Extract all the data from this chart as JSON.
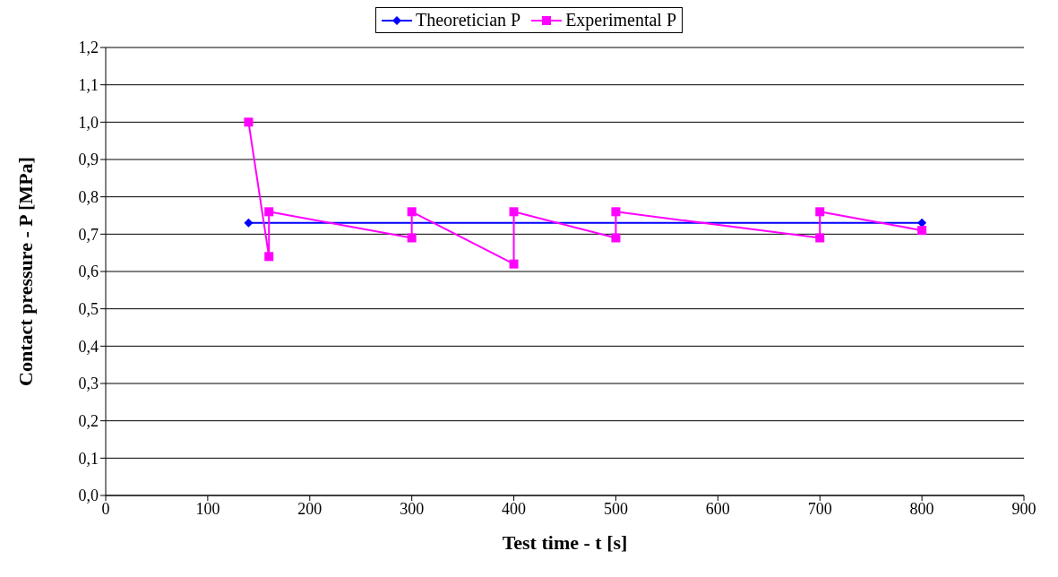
{
  "chart_data": {
    "type": "line",
    "xlabel": "Test time - t [s]",
    "ylabel": "Contact pressure - P [MPa]",
    "xlim": [
      0,
      900
    ],
    "xticks": [
      0,
      100,
      200,
      300,
      400,
      500,
      600,
      700,
      800,
      900
    ],
    "ylim": [
      0,
      1.2
    ],
    "yticks": [
      {
        "value": 0,
        "label": "0,0"
      },
      {
        "value": 0.1,
        "label": "0,1"
      },
      {
        "value": 0.2,
        "label": "0,2"
      },
      {
        "value": 0.3,
        "label": "0,3"
      },
      {
        "value": 0.4,
        "label": "0,4"
      },
      {
        "value": 0.5,
        "label": "0,5"
      },
      {
        "value": 0.6,
        "label": "0,6"
      },
      {
        "value": 0.7,
        "label": "0,7"
      },
      {
        "value": 0.8,
        "label": "0,8"
      },
      {
        "value": 0.9,
        "label": "0,9"
      },
      {
        "value": 1.0,
        "label": "1,0"
      },
      {
        "value": 1.1,
        "label": "1,1"
      },
      {
        "value": 1.2,
        "label": "1,2"
      }
    ],
    "grid": "y",
    "legend": "top",
    "series": [
      {
        "name": "Theoretician P",
        "color": "#0000ff",
        "marker": "diamond",
        "x": [
          140,
          800
        ],
        "values": [
          0.73,
          0.73
        ]
      },
      {
        "name": "Experimental P",
        "color": "#ff00ff",
        "marker": "square",
        "x": [
          140,
          160,
          160,
          300,
          300,
          400,
          400,
          500,
          500,
          700,
          700,
          800
        ],
        "values": [
          1.0,
          0.64,
          0.76,
          0.69,
          0.76,
          0.62,
          0.76,
          0.69,
          0.76,
          0.69,
          0.76,
          0.71
        ]
      }
    ]
  }
}
